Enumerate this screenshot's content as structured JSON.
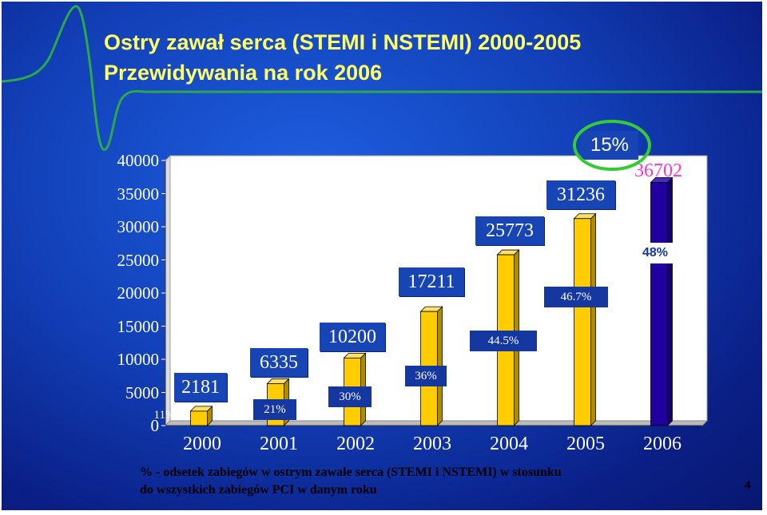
{
  "slide": {
    "title_line1": "Ostry zawał serca (STEMI i NSTEMI) 2000-2005",
    "title_line2": "Przewidywania na rok 2006",
    "footnote_line1": "% - odsetek zabiegów w ostrym zawale serca (STEMI i NSTEMI) w stosunku",
    "footnote_line2": "do wszystkich zabiegów PCI w danym roku",
    "page_number": "4",
    "highlight_label": "15%"
  },
  "colors": {
    "title": "#ffff66",
    "bar_fill": "#ffcc00",
    "forecast_bar_fill": "#2200a0",
    "forecast_value_text": "#ff33cc",
    "highlight_ellipse": "#33cc33",
    "value_box": "#1745b5"
  },
  "chart_data": {
    "type": "bar",
    "categories": [
      "2000",
      "2001",
      "2002",
      "2003",
      "2004",
      "2005",
      "2006"
    ],
    "values": [
      2181,
      6335,
      10200,
      17211,
      25773,
      31236,
      36702
    ],
    "value_labels": [
      "2181",
      "6335",
      "10200",
      "17211",
      "25773",
      "31236",
      "36702"
    ],
    "percent_labels": [
      "11%",
      "21%",
      "30%",
      "36%",
      "44.5%",
      "46.7%",
      "48%"
    ],
    "forecast_index": 6,
    "ylim": [
      0,
      40000
    ],
    "yticks": [
      0,
      5000,
      10000,
      15000,
      20000,
      25000,
      30000,
      35000,
      40000
    ],
    "ytick_labels": [
      "0",
      "5000",
      "10000",
      "15000",
      "20000",
      "25000",
      "30000",
      "35000",
      "40000"
    ],
    "grid": false,
    "legend": "none"
  }
}
